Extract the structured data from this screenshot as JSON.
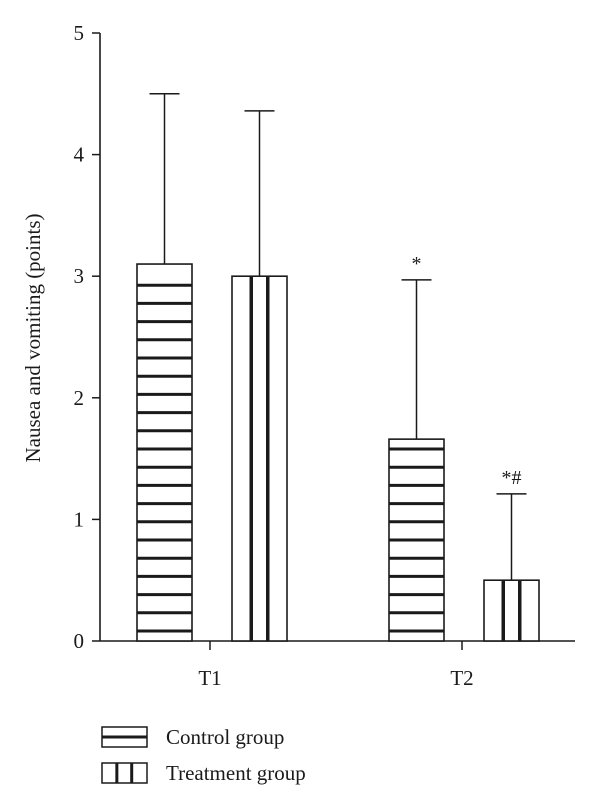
{
  "chart_data": {
    "type": "bar",
    "title": "",
    "xlabel": "",
    "ylabel": "Nausea and vomiting (points)",
    "ylim": [
      0,
      5
    ],
    "yticks": [
      "0",
      "1",
      "2",
      "3",
      "4",
      "5"
    ],
    "categories": [
      "T1",
      "T2"
    ],
    "series": [
      {
        "name": "Control group",
        "pattern": "horizontal-stripes",
        "values": [
          3.1,
          1.66
        ],
        "error_upper": [
          4.5,
          2.97
        ],
        "annotations": [
          "",
          "*"
        ]
      },
      {
        "name": "Treatment group",
        "pattern": "vertical-stripes",
        "values": [
          3.0,
          0.5
        ],
        "error_upper": [
          4.36,
          1.21
        ],
        "annotations": [
          "",
          "*#"
        ]
      }
    ],
    "legend_position": "bottom-left",
    "grid": false,
    "colors": {
      "ink": "#1a1a1a",
      "fill": "#ffffff"
    }
  }
}
